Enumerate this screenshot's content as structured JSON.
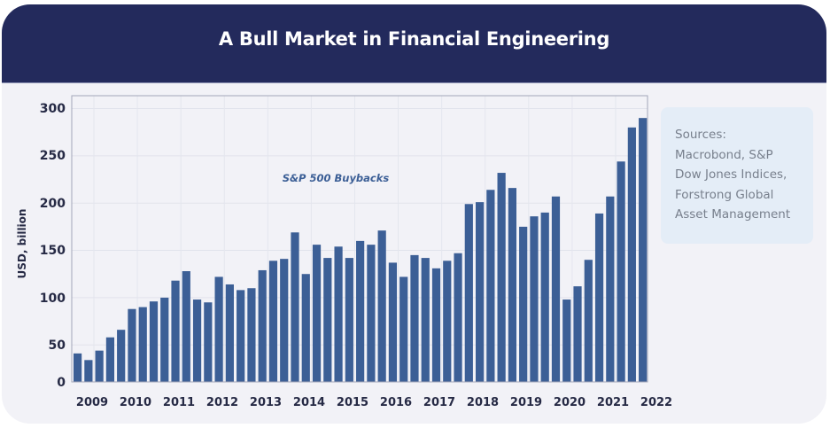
{
  "header": {
    "title": "A Bull Market in Financial Engineering"
  },
  "sources": {
    "text": "Sources:\nMacrobond, S&P\nDow Jones Indices,\nForstrong Global\nAsset Management"
  },
  "colors": {
    "header_bg": "#232a5c",
    "card_bg": "#f2f2f7",
    "bar": "#3c5f96",
    "sources_bg": "#e4edf7",
    "sources_text": "#777f8c",
    "axis_text": "#262a45",
    "annotation": "#3c5f96"
  },
  "chart_data": {
    "type": "bar",
    "title": "A Bull Market in Financial Engineering",
    "annotation": "S&P 500 Buybacks",
    "xlabel": "",
    "ylabel": "USD, billion",
    "ylim": [
      0,
      300
    ],
    "yticks": [
      0,
      50,
      100,
      150,
      200,
      250,
      300
    ],
    "xtick_labels": [
      "2009",
      "2010",
      "2011",
      "2012",
      "2013",
      "2014",
      "2015",
      "2016",
      "2017",
      "2018",
      "2019",
      "2020",
      "2021",
      "2022"
    ],
    "grid": true,
    "legend": "none",
    "series": [
      {
        "name": "S&P 500 Buybacks",
        "categories": [
          "2009Q1",
          "2009Q2",
          "2009Q3",
          "2009Q4",
          "2010Q1",
          "2010Q2",
          "2010Q3",
          "2010Q4",
          "2011Q1",
          "2011Q2",
          "2011Q3",
          "2011Q4",
          "2012Q1",
          "2012Q2",
          "2012Q3",
          "2012Q4",
          "2013Q1",
          "2013Q2",
          "2013Q3",
          "2013Q4",
          "2014Q1",
          "2014Q2",
          "2014Q3",
          "2014Q4",
          "2015Q1",
          "2015Q2",
          "2015Q3",
          "2015Q4",
          "2016Q1",
          "2016Q2",
          "2016Q3",
          "2016Q4",
          "2017Q1",
          "2017Q2",
          "2017Q3",
          "2017Q4",
          "2018Q1",
          "2018Q2",
          "2018Q3",
          "2018Q4",
          "2019Q1",
          "2019Q2",
          "2019Q3",
          "2019Q4",
          "2020Q1",
          "2020Q2",
          "2020Q3",
          "2020Q4",
          "2021Q1",
          "2021Q2",
          "2021Q3",
          "2021Q4",
          "2022Q1"
        ],
        "values": [
          41,
          34,
          44,
          58,
          66,
          88,
          90,
          96,
          100,
          118,
          128,
          98,
          95,
          122,
          114,
          108,
          110,
          129,
          139,
          141,
          169,
          125,
          156,
          142,
          154,
          142,
          160,
          156,
          171,
          137,
          122,
          145,
          142,
          131,
          139,
          147,
          199,
          201,
          214,
          232,
          216,
          175,
          186,
          190,
          207,
          98,
          112,
          140,
          189,
          207,
          244,
          280,
          290
        ]
      }
    ]
  }
}
